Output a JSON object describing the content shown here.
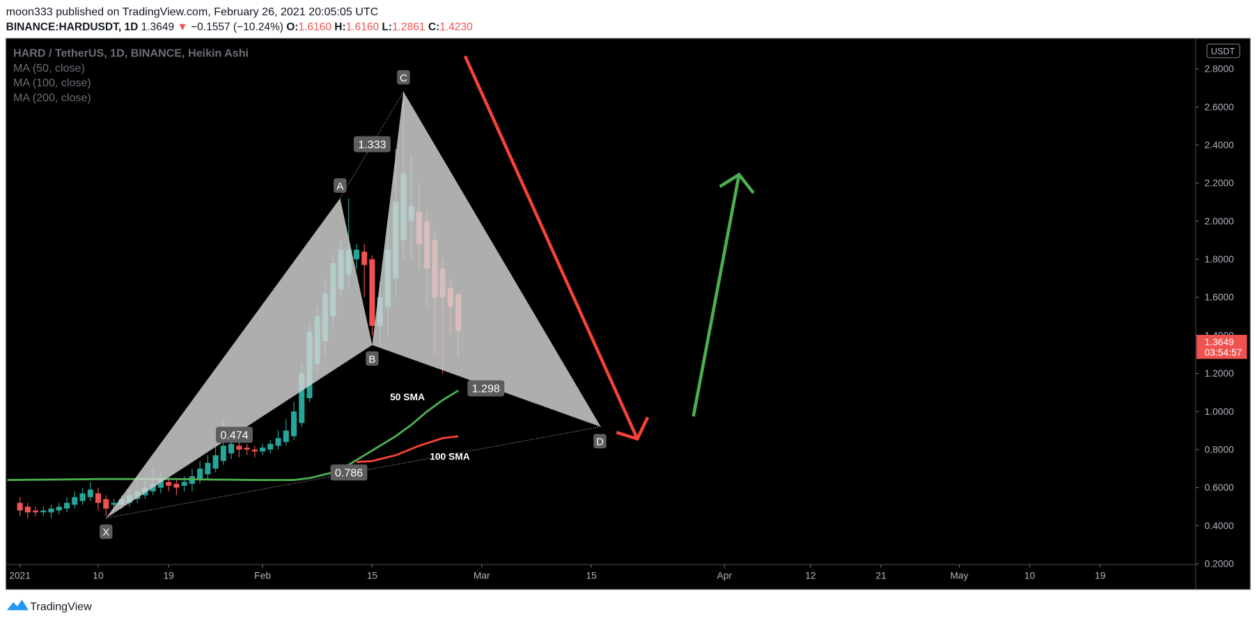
{
  "header": {
    "published": "moon333 published on TradingView.com, February 26, 2021 20:05:05 UTC",
    "symbol": "BINANCE:HARDUSDT, 1D",
    "last": "1.3649",
    "arrow": "▼",
    "change": "−0.1557 (−10.24%)",
    "o_label": "O:",
    "o": "1.6160",
    "h_label": "H:",
    "h": "1.6160",
    "l_label": "L:",
    "l": "1.2861",
    "c_label": "C:",
    "c": "1.4230"
  },
  "footer": {
    "brand": "TradingView"
  },
  "chart_data": {
    "type": "candlestick",
    "legend": [
      "HARD / TetherUS, 1D, BINANCE, Heikin Ashi",
      "MA (50, close)",
      "MA (100, close)",
      "MA (200, close)"
    ],
    "y_axis_unit": "USDT",
    "x": [
      0,
      1,
      2,
      3,
      4,
      5,
      6,
      7,
      8,
      9,
      10,
      11,
      12,
      13,
      14,
      15,
      16,
      17,
      18,
      19,
      20,
      21,
      22,
      23,
      24,
      25,
      26,
      27,
      28,
      29,
      30,
      31,
      32,
      33,
      34,
      35,
      36,
      37,
      38,
      39,
      40,
      41,
      42,
      43,
      44,
      45,
      46,
      47,
      48,
      49,
      50,
      51,
      52,
      53,
      54,
      55,
      56
    ],
    "open": [
      0.52,
      0.5,
      0.48,
      0.47,
      0.47,
      0.48,
      0.49,
      0.51,
      0.53,
      0.55,
      0.57,
      0.54,
      0.51,
      0.51,
      0.52,
      0.54,
      0.56,
      0.58,
      0.6,
      0.63,
      0.62,
      0.61,
      0.62,
      0.64,
      0.67,
      0.7,
      0.74,
      0.78,
      0.82,
      0.81,
      0.8,
      0.79,
      0.8,
      0.82,
      0.84,
      0.87,
      0.94,
      1.07,
      1.25,
      1.37,
      1.5,
      1.64,
      1.72,
      1.8,
      1.84,
      1.8,
      1.45,
      1.55,
      1.7,
      1.9,
      2.0,
      2.05,
      2.0,
      1.9,
      1.75,
      1.65,
      1.616
    ],
    "high": [
      0.55,
      0.52,
      0.5,
      0.5,
      0.51,
      0.52,
      0.55,
      0.58,
      0.6,
      0.63,
      0.6,
      0.56,
      0.54,
      0.56,
      0.59,
      0.62,
      0.66,
      0.7,
      0.68,
      0.66,
      0.65,
      0.66,
      0.7,
      0.74,
      0.77,
      0.82,
      0.95,
      0.86,
      0.84,
      0.83,
      0.82,
      0.83,
      0.85,
      0.9,
      0.96,
      1.05,
      1.25,
      1.46,
      1.55,
      1.7,
      1.82,
      1.9,
      2.12,
      1.88,
      1.88,
      1.82,
      1.68,
      2.0,
      2.38,
      2.68,
      2.35,
      2.2,
      2.05,
      1.95,
      1.8,
      1.7,
      1.616
    ],
    "low": [
      0.45,
      0.44,
      0.45,
      0.45,
      0.44,
      0.46,
      0.47,
      0.49,
      0.51,
      0.53,
      0.48,
      0.45,
      0.48,
      0.49,
      0.5,
      0.52,
      0.54,
      0.56,
      0.57,
      0.58,
      0.56,
      0.58,
      0.58,
      0.62,
      0.64,
      0.68,
      0.72,
      0.75,
      0.76,
      0.77,
      0.76,
      0.77,
      0.78,
      0.8,
      0.82,
      0.85,
      0.92,
      1.05,
      1.2,
      1.3,
      1.45,
      1.6,
      1.65,
      1.75,
      1.6,
      1.4,
      1.35,
      1.4,
      1.6,
      1.8,
      1.8,
      1.75,
      1.55,
      1.3,
      1.2,
      1.4,
      1.2861
    ],
    "close": [
      0.48,
      0.47,
      0.47,
      0.48,
      0.49,
      0.5,
      0.52,
      0.55,
      0.57,
      0.59,
      0.52,
      0.49,
      0.52,
      0.54,
      0.56,
      0.58,
      0.6,
      0.62,
      0.64,
      0.61,
      0.6,
      0.63,
      0.66,
      0.7,
      0.73,
      0.77,
      0.82,
      0.83,
      0.8,
      0.8,
      0.79,
      0.81,
      0.83,
      0.86,
      0.9,
      1.0,
      1.2,
      1.42,
      1.5,
      1.62,
      1.78,
      1.85,
      1.85,
      1.85,
      1.77,
      1.45,
      1.6,
      1.85,
      2.1,
      2.25,
      2.08,
      1.88,
      1.75,
      1.6,
      1.6,
      1.55,
      1.423
    ],
    "up_color": "#26a69a",
    "down_color": "#ef5350",
    "series": [
      {
        "name": "50 SMA",
        "color": "#4caf50",
        "x": [
          -1.6,
          10,
          20,
          30,
          35,
          37,
          40,
          42,
          44,
          46,
          48,
          50,
          52,
          54,
          56
        ],
        "values": [
          0.64,
          0.645,
          0.645,
          0.64,
          0.64,
          0.65,
          0.68,
          0.72,
          0.77,
          0.82,
          0.87,
          0.93,
          1.0,
          1.06,
          1.11
        ]
      },
      {
        "name": "100 SMA",
        "color": "#f44336",
        "x": [
          43,
          45,
          48,
          51,
          54,
          56
        ],
        "values": [
          0.735,
          0.74,
          0.77,
          0.82,
          0.86,
          0.87
        ]
      }
    ],
    "pattern": {
      "points": [
        {
          "label": "X",
          "x": 11,
          "y": 0.44
        },
        {
          "label": "A",
          "x": 40.9,
          "y": 2.12
        },
        {
          "label": "B",
          "x": 45,
          "y": 1.35
        },
        {
          "label": "C",
          "x": 49,
          "y": 2.68
        },
        {
          "label": "D",
          "x": 74.2,
          "y": 0.92
        }
      ],
      "ratios": [
        0.474,
        1.333,
        1.298,
        0.786
      ]
    },
    "price_tag": {
      "value": 1.3649,
      "countdown": "03:54:57"
    },
    "xlim": [
      -1.67,
      150.2
    ],
    "ylim": [
      0.196,
      2.96
    ],
    "xticks": [
      {
        "value": 0,
        "label": "2021"
      },
      10,
      19,
      {
        "value": 31,
        "label": "Feb"
      },
      {
        "value": 45,
        "label": "15"
      },
      {
        "value": 59,
        "label": "Mar"
      },
      {
        "value": 73,
        "label": "15"
      },
      {
        "value": 90,
        "label": "Apr"
      },
      {
        "value": 101,
        "label": "12"
      },
      {
        "value": 110,
        "label": "21"
      },
      {
        "value": 120,
        "label": "May"
      },
      {
        "value": 129,
        "label": "10"
      },
      {
        "value": 138,
        "label": "19"
      }
    ],
    "yticks": [
      {
        "value": 0.2,
        "label": "0.2000"
      },
      {
        "value": 0.4,
        "label": "0.4000"
      },
      {
        "value": 0.6,
        "label": "0.6000"
      },
      {
        "value": 0.8,
        "label": "0.8000"
      },
      {
        "value": 1.0,
        "label": "1.0000"
      },
      {
        "value": 1.2,
        "label": "1.2000"
      },
      {
        "value": 1.4,
        "label": "1.4000"
      },
      {
        "value": 1.6,
        "label": "1.6000"
      },
      {
        "value": 1.8,
        "label": "1.8000"
      },
      {
        "value": 2.0,
        "label": "2.0000"
      },
      {
        "value": 2.2,
        "label": "2.2000"
      },
      {
        "value": 2.4,
        "label": "2.4000"
      },
      {
        "value": 2.6,
        "label": "2.6000"
      },
      {
        "value": 2.8,
        "label": "2.8000"
      }
    ]
  }
}
